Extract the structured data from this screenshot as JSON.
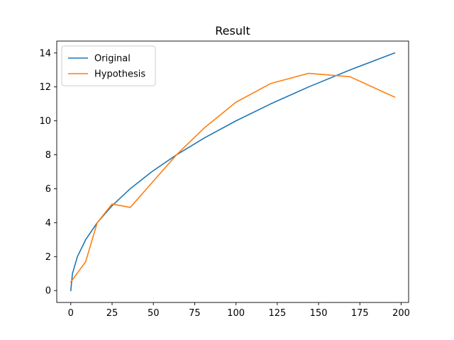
{
  "chart_data": {
    "type": "line",
    "title": "Result",
    "xlabel": "",
    "ylabel": "",
    "xlim": [
      -8.5,
      204.5
    ],
    "ylim": [
      -0.7,
      14.7
    ],
    "xticks": [
      0,
      25,
      50,
      75,
      100,
      125,
      150,
      175,
      200
    ],
    "yticks": [
      0,
      2,
      4,
      6,
      8,
      10,
      12,
      14
    ],
    "grid": false,
    "legend_position": "top-left",
    "series": [
      {
        "name": "Original",
        "color": "#1f77b4",
        "x": [
          0,
          1,
          4,
          9,
          16,
          25,
          36,
          49,
          64,
          81,
          100,
          121,
          144,
          169,
          196
        ],
        "y": [
          0,
          1,
          2,
          3,
          4,
          5,
          6,
          7,
          8,
          9,
          10,
          11,
          12,
          13,
          14
        ]
      },
      {
        "name": "Hypothesis",
        "color": "#ff7f0e",
        "x": [
          0,
          9,
          16,
          25,
          36,
          64,
          81,
          100,
          121,
          144,
          169,
          196
        ],
        "y": [
          0.5,
          1.7,
          4.0,
          5.1,
          4.9,
          8.0,
          9.6,
          11.1,
          12.2,
          12.8,
          12.6,
          11.4
        ]
      }
    ]
  }
}
